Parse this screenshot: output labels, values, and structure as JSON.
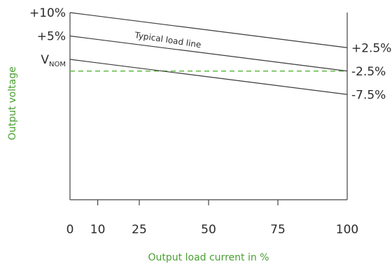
{
  "chart_data": {
    "type": "line",
    "xlabel": "Output load current in %",
    "ylabel": "Output voltage",
    "x_ticks": [
      "0",
      "10",
      "25",
      "50",
      "75",
      "100"
    ],
    "y_ticks_left": [
      {
        "label": "+10%",
        "value": 10
      },
      {
        "label": "+5%",
        "value": 5
      },
      {
        "label": "V",
        "sub": "NOM",
        "value": 0
      }
    ],
    "y_ticks_right": [
      {
        "label": "+2.5%",
        "value": 2.5
      },
      {
        "label": "-2.5%",
        "value": -2.5
      },
      {
        "label": "-7.5%",
        "value": -7.5
      }
    ],
    "xlim": [
      0,
      100
    ],
    "ylim": [
      -30,
      10
    ],
    "annotation": "Typical load line",
    "series": [
      {
        "x": [
          0,
          100
        ],
        "y": [
          10,
          2.5
        ]
      },
      {
        "x": [
          0,
          100
        ],
        "y": [
          5,
          -2.5
        ]
      },
      {
        "x": [
          0,
          100
        ],
        "y": [
          0,
          -7.5
        ]
      }
    ],
    "reference_line": {
      "y": -2.5,
      "style": "dashed"
    },
    "colors": {
      "line": "#3a3a3a",
      "reference": "#63b945",
      "axis_title": "#4aa032",
      "text": "#2b2b2b"
    }
  }
}
